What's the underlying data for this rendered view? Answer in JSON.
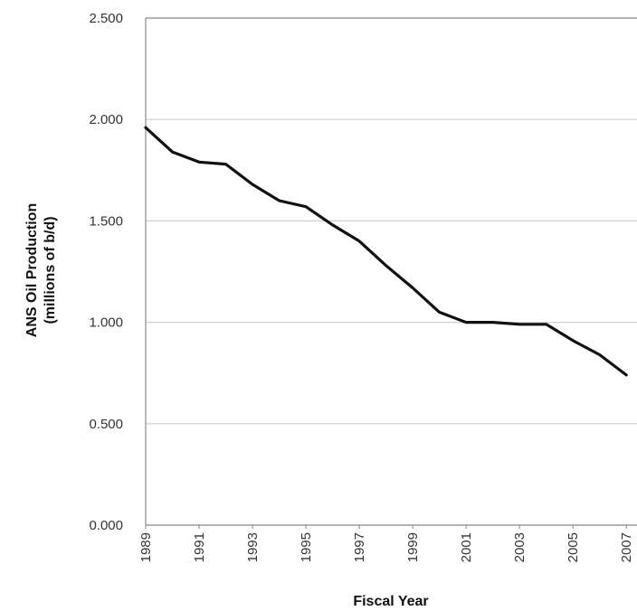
{
  "chart_data": {
    "type": "line",
    "title": "",
    "xlabel": "Fiscal Year",
    "ylabel": [
      "ANS Oil Production",
      "(millions of b/d)"
    ],
    "ylim": [
      0,
      2.5
    ],
    "yticks": [
      "0.000",
      "0.500",
      "1.000",
      "1.500",
      "2.000",
      "2.500"
    ],
    "xtick_labels": [
      "1989",
      "1991",
      "1993",
      "1995",
      "1997",
      "1999",
      "2001",
      "2003",
      "2005",
      "2007"
    ],
    "grid": true,
    "series": [
      {
        "x": [
          1989,
          1990,
          1991,
          1992,
          1993,
          1994,
          1995,
          1996,
          1997,
          1998,
          1999,
          2000,
          2001,
          2002,
          2003,
          2004,
          2005,
          2006,
          2007
        ],
        "values": [
          1.96,
          1.84,
          1.79,
          1.78,
          1.68,
          1.6,
          1.57,
          1.48,
          1.4,
          1.28,
          1.17,
          1.05,
          1.0,
          1.0,
          0.99,
          0.99,
          0.91,
          0.84,
          0.74
        ]
      }
    ]
  },
  "colors": {
    "line": "#111111",
    "grid": "#cfcfcf",
    "axis": "#888888"
  }
}
